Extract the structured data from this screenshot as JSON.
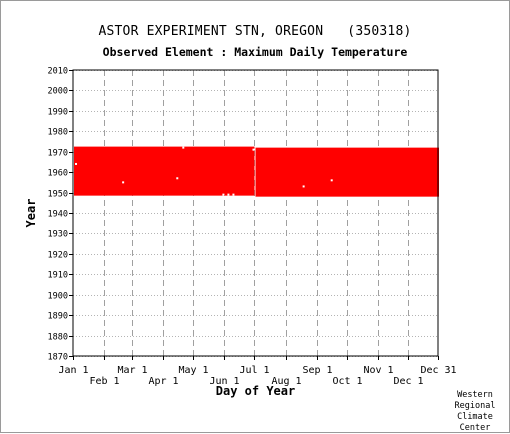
{
  "chart_data": {
    "type": "heatmap",
    "title": "ASTOR EXPERIMENT STN, OREGON   (350318)",
    "subtitle": "Observed Element : Maximum Daily Temperature",
    "xlabel": "Day of Year",
    "ylabel": "Year",
    "x_range_day_of_year": [
      1,
      365
    ],
    "ylim": [
      1870,
      2010
    ],
    "y_ticks": [
      1870,
      1880,
      1890,
      1900,
      1910,
      1920,
      1930,
      1940,
      1950,
      1960,
      1970,
      1980,
      1990,
      2000,
      2010
    ],
    "x_ticks_top_row": [
      {
        "label": "Jan 1",
        "day": 1
      },
      {
        "label": "Mar 1",
        "day": 60
      },
      {
        "label": "May 1",
        "day": 121
      },
      {
        "label": "Jul 1",
        "day": 182
      },
      {
        "label": "Sep 1",
        "day": 244
      },
      {
        "label": "Nov 1",
        "day": 305
      },
      {
        "label": "Dec 31",
        "day": 365
      }
    ],
    "x_ticks_bottom_row": [
      {
        "label": "Feb 1",
        "day": 32
      },
      {
        "label": "Apr 1",
        "day": 91
      },
      {
        "label": "Jun 1",
        "day": 152
      },
      {
        "label": "Aug 1",
        "day": 213
      },
      {
        "label": "Oct 1",
        "day": 274
      },
      {
        "label": "Dec 1",
        "day": 335
      }
    ],
    "grid": true,
    "data_color": "#ff0000",
    "coverage": [
      {
        "day_start": 1,
        "day_end": 181,
        "year_start": 1948.5,
        "year_end": 1972.5
      },
      {
        "day_start": 182,
        "day_end": 365,
        "year_start": 1948,
        "year_end": 1972
      }
    ],
    "missing_points": [
      {
        "day": 3,
        "year": 1964
      },
      {
        "day": 50,
        "year": 1955
      },
      {
        "day": 104,
        "year": 1957
      },
      {
        "day": 230,
        "year": 1953
      },
      {
        "day": 258,
        "year": 1956
      },
      {
        "day": 110,
        "year": 1972
      },
      {
        "day": 180,
        "year": 1971
      },
      {
        "day": 150,
        "year": 1949
      },
      {
        "day": 155,
        "year": 1949
      },
      {
        "day": 160,
        "year": 1949
      }
    ]
  },
  "footer": {
    "lines": [
      "Western",
      "Regional",
      "Climate",
      "Center"
    ]
  }
}
